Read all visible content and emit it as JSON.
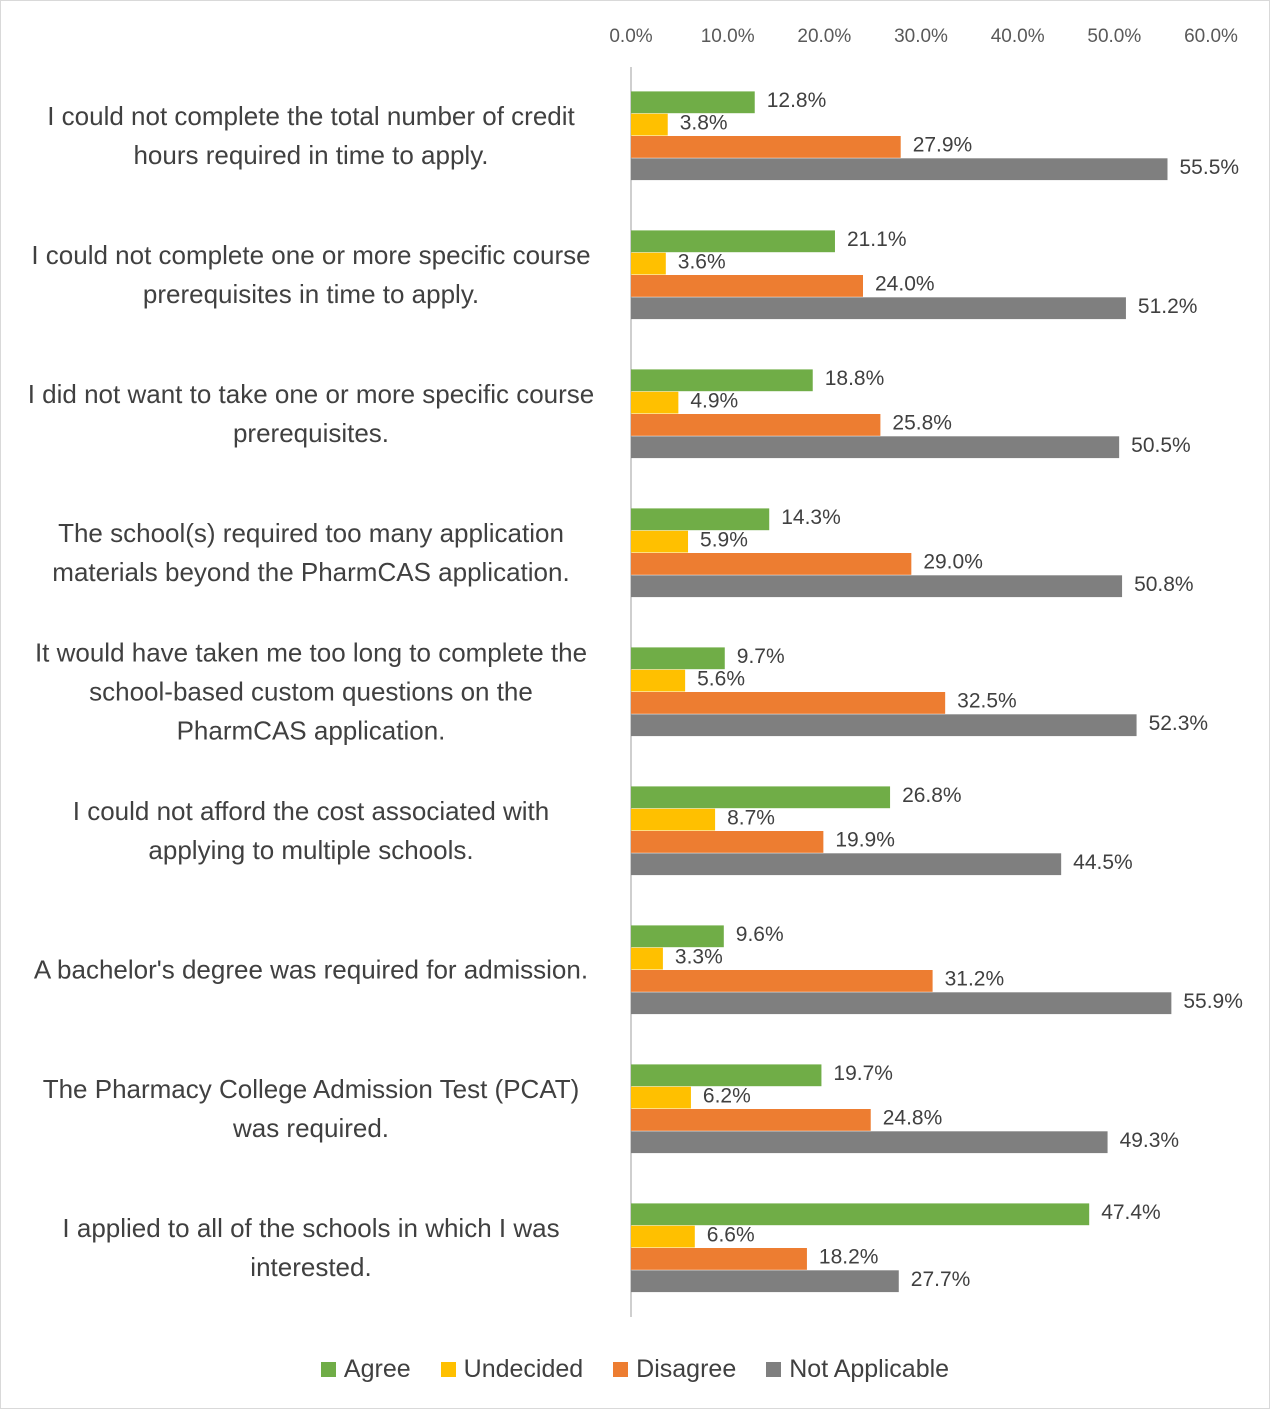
{
  "chart_data": {
    "type": "bar",
    "orientation": "horizontal",
    "categories": [
      "I could not complete the total number of credit hours required in time to apply.",
      "I could not complete one or more specific course prerequisites in time to apply.",
      "I did not want to take one or more specific course prerequisites.",
      "The school(s) required too many application materials beyond the PharmCAS application.",
      "It would have taken me too long to complete the school-based custom questions on the PharmCAS application.",
      "I could not afford the cost associated with applying to multiple schools.",
      "A bachelor's degree was required for admission.",
      "The Pharmacy College Admission Test (PCAT) was required.",
      "I applied to all of the schools in which I was interested."
    ],
    "series": [
      {
        "name": "Agree",
        "color": "#70ad47",
        "values": [
          12.8,
          21.1,
          18.8,
          14.3,
          9.7,
          26.8,
          9.6,
          19.7,
          47.4
        ],
        "value_labels": [
          "12.8%",
          "21.1%",
          "18.8%",
          "14.3%",
          "9.7%",
          "26.8%",
          "9.6%",
          "19.7%",
          "47.4%"
        ]
      },
      {
        "name": "Undecided",
        "color": "#ffc000",
        "values": [
          3.8,
          3.6,
          4.9,
          5.9,
          5.6,
          8.7,
          3.3,
          6.2,
          6.6
        ],
        "value_labels": [
          "3.8%",
          "3.6%",
          "4.9%",
          "5.9%",
          "5.6%",
          "8.7%",
          "3.3%",
          "6.2%",
          "6.6%"
        ]
      },
      {
        "name": "Disagree",
        "color": "#ed7d31",
        "values": [
          27.9,
          24.0,
          25.8,
          29.0,
          32.5,
          19.9,
          31.2,
          24.8,
          18.2
        ],
        "value_labels": [
          "27.9%",
          "24.0%",
          "25.8%",
          "29.0%",
          "32.5%",
          "19.9%",
          "31.2%",
          "24.8%",
          "18.2%"
        ]
      },
      {
        "name": "Not Applicable",
        "color": "#7f7f7f",
        "values": [
          55.5,
          51.2,
          50.5,
          50.8,
          52.3,
          44.5,
          55.9,
          49.3,
          27.7
        ],
        "value_labels": [
          "55.5%",
          "51.2%",
          "50.5%",
          "50.8%",
          "52.3%",
          "44.5%",
          "55.9%",
          "49.3%",
          "27.7%"
        ]
      }
    ],
    "xlim": [
      0,
      60
    ],
    "xticks": [
      {
        "value": 0,
        "label": "0.0%"
      },
      {
        "value": 10,
        "label": "10.0%"
      },
      {
        "value": 20,
        "label": "20.0%"
      },
      {
        "value": 30,
        "label": "30.0%"
      },
      {
        "value": 40,
        "label": "40.0%"
      },
      {
        "value": 50,
        "label": "50.0%"
      },
      {
        "value": 60,
        "label": "60.0%"
      }
    ],
    "grid": false,
    "legend": "bottom"
  }
}
